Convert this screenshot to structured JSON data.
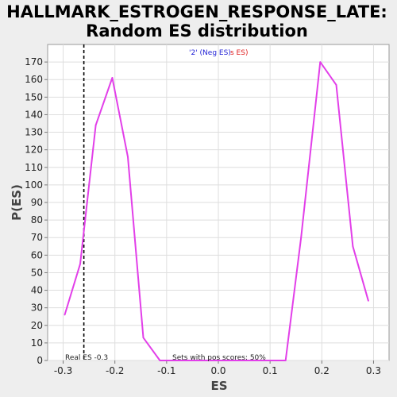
{
  "chart_data": {
    "type": "line",
    "title": [
      "HALLMARK_ESTROGEN_RESPONSE_LATE:",
      "Random ES distribution"
    ],
    "xlabel": "ES",
    "ylabel": "P(ES)",
    "xlim": [
      -0.33,
      0.33
    ],
    "ylim": [
      0,
      180
    ],
    "xticks": [
      -0.3,
      -0.2,
      -0.1,
      0.0,
      0.1,
      0.2,
      0.3
    ],
    "xtick_labels": [
      "-0.3",
      "-0.2",
      "-0.1",
      "0.0",
      "0.1",
      "0.2",
      "0.3"
    ],
    "yticks": [
      0,
      10,
      20,
      30,
      40,
      50,
      60,
      70,
      80,
      90,
      100,
      110,
      120,
      130,
      140,
      150,
      160,
      170
    ],
    "ytick_labels": [
      "0",
      "10",
      "20",
      "30",
      "40",
      "50",
      "60",
      "70",
      "80",
      "90",
      "100",
      "110",
      "120",
      "130",
      "140",
      "150",
      "160",
      "170"
    ],
    "grid": true,
    "series": [
      {
        "color": "#e23fe9",
        "x": [
          -0.297,
          -0.267,
          -0.237,
          -0.205,
          -0.175,
          -0.145,
          -0.113,
          -0.083,
          -0.053,
          -0.022,
          0.008,
          0.038,
          0.068,
          0.098,
          0.13,
          0.16,
          0.197,
          0.228,
          0.26,
          0.29
        ],
        "y": [
          26,
          55,
          134,
          161,
          116,
          13,
          0,
          0,
          0,
          0,
          0,
          0,
          0,
          0,
          0,
          70,
          170,
          157,
          65,
          34
        ]
      }
    ],
    "real_es": -0.26,
    "legend": {
      "position": "top-center",
      "text_blue": "'2' (Neg ES)",
      "text_red": "s ES)",
      "color_blue": "#2323d6",
      "color_red": "#e02020"
    },
    "annotations": {
      "real_es_label": "Real ES -0.3",
      "pos_scores_label": "Sets with pos scores: 50%"
    }
  }
}
